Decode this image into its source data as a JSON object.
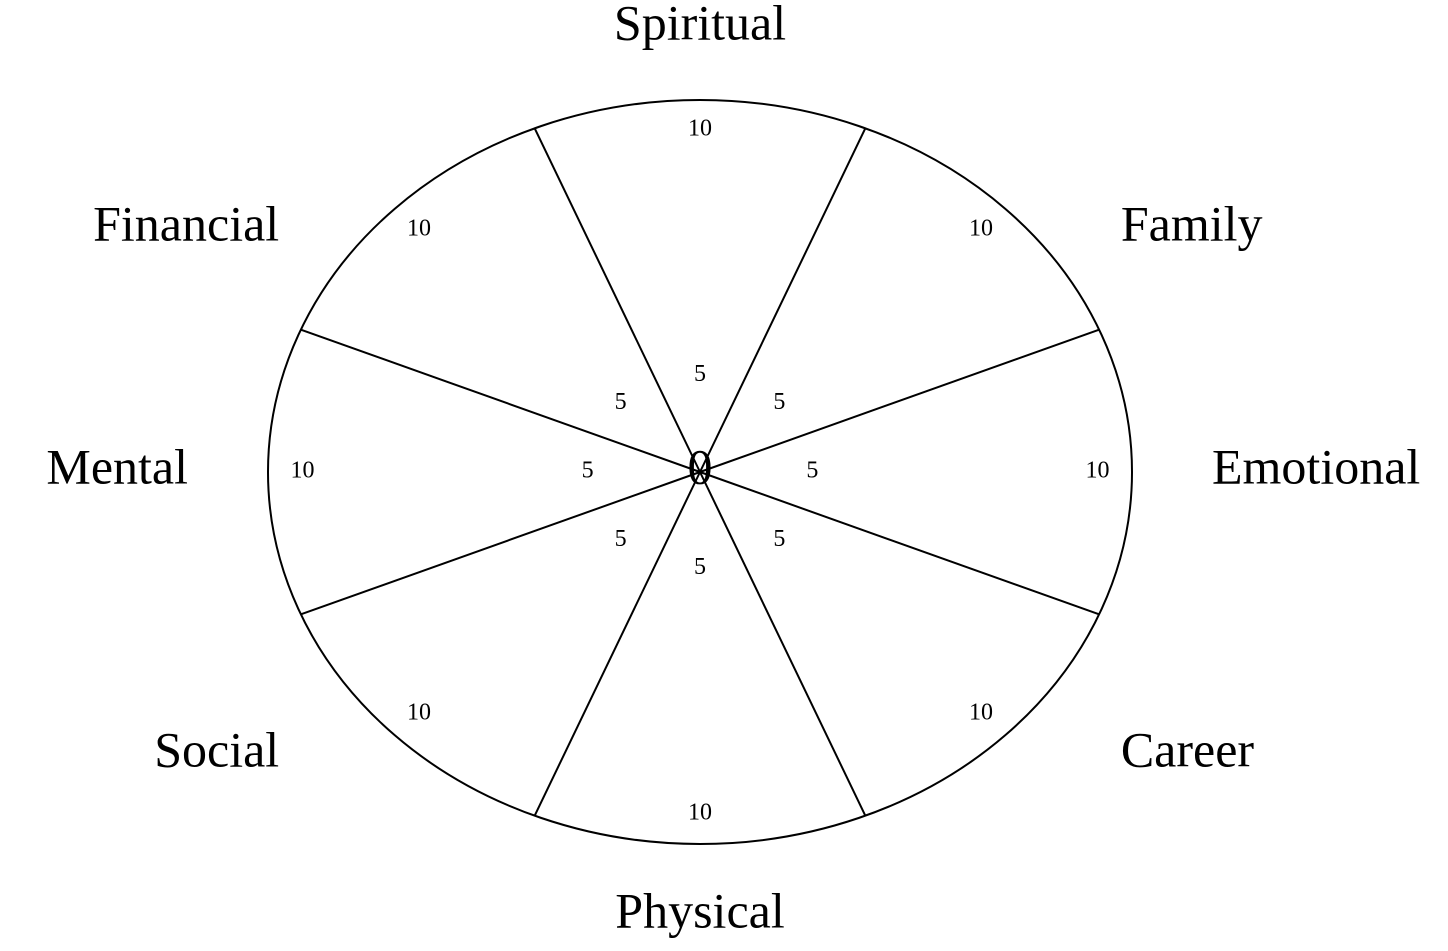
{
  "chart_data": {
    "type": "radar",
    "categories": [
      "Spiritual",
      "Family",
      "Emotional",
      "Career",
      "Physical",
      "Social",
      "Mental",
      "Financial"
    ],
    "rlim": [
      0,
      10
    ],
    "rticks": [
      0,
      5,
      10
    ]
  }
}
